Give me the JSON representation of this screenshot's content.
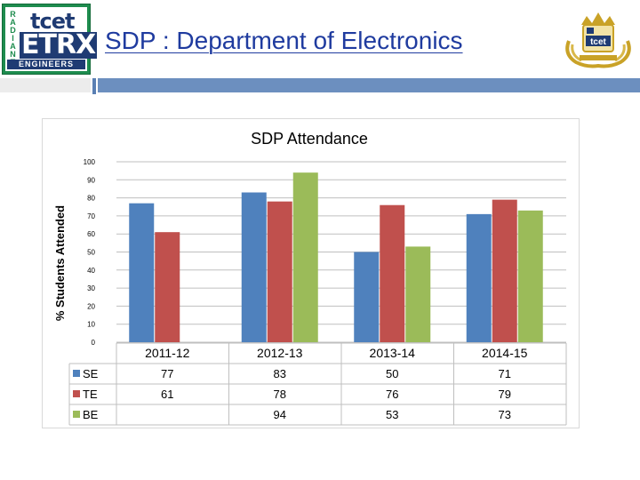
{
  "header": {
    "title": "SDP : Department of Electronics",
    "logo_left": {
      "radiant_letters": [
        "R",
        "A",
        "D",
        "I",
        "A",
        "N",
        "T"
      ],
      "brand_top": "tcet",
      "brand_main": "ETRX",
      "brand_bottom": "ENGINEERS"
    },
    "logo_right": {
      "text": "tcet"
    }
  },
  "colors": {
    "series_se": "#4f81bd",
    "series_te": "#c0504d",
    "series_be": "#9bbb59",
    "title_blue": "#1f3b9f",
    "band_blue": "#6c8fbf"
  },
  "chart_data": {
    "type": "bar",
    "title": "SDP Attendance",
    "ylabel": "% Students Attended",
    "xlabel": "",
    "categories": [
      "2011-12",
      "2012-13",
      "2013-14",
      "2014-15"
    ],
    "ylim": [
      0,
      100
    ],
    "yticks": [
      "0",
      "10",
      "20",
      "30",
      "40",
      "50",
      "60",
      "70",
      "80",
      "90",
      "100"
    ],
    "grid": true,
    "legend": "data-table",
    "series": [
      {
        "name": "SE",
        "values": [
          77,
          83,
          50,
          71
        ],
        "labels": [
          "77",
          "83",
          "50",
          "71"
        ]
      },
      {
        "name": "TE",
        "values": [
          61,
          78,
          76,
          79
        ],
        "labels": [
          "61",
          "78",
          "76",
          "79"
        ]
      },
      {
        "name": "BE",
        "values": [
          null,
          94,
          53,
          73
        ],
        "labels": [
          "",
          "94",
          "53",
          "73"
        ]
      }
    ]
  }
}
